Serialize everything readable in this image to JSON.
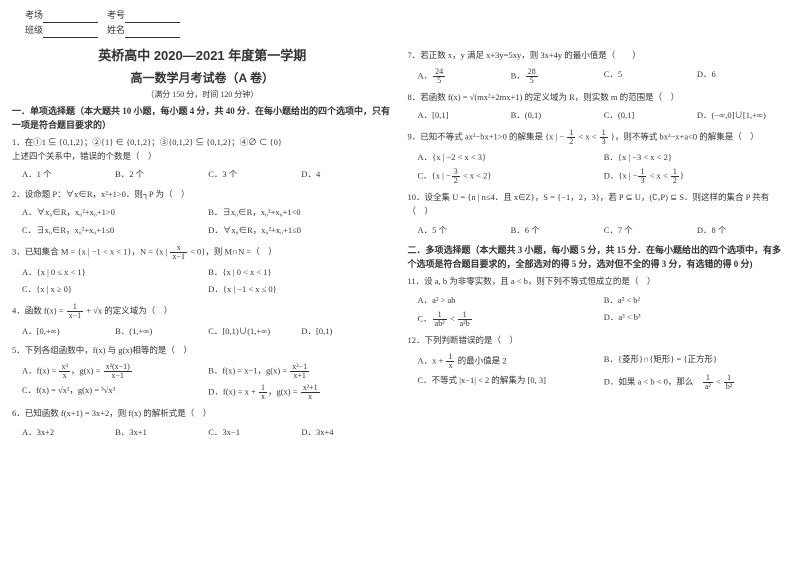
{
  "header": {
    "field1_label": "考场",
    "field2_label": "考号",
    "field3_label": "班级",
    "field4_label": "姓名"
  },
  "title1": "英桥高中 2020—2021 年度第一学期",
  "title2": "高一数学月考试卷（A 卷）",
  "subtitle": "（满分 150 分，时间 120 分钟）",
  "section1_head": "一．单项选择题（本大题共 10 小题，每小题 4 分，共 40 分．在每小题给出的四个选项中，只有一项是符合题目要求的）",
  "q1": {
    "text": "1．在①1 ⊆ {0,1,2}；②{1} ∈ {0,1,2}；③{0,1,2} ⊆ {0,1,2}；④∅ ⊂ {0}",
    "text2": "上述四个关系中，错误的个数是（　）",
    "A": "A．1 个",
    "B": "B．2 个",
    "C": "C．3 个",
    "D": "D．4"
  },
  "q2": {
    "text": "2．设命题 P：∀x∈R，x²+1>0．则┐P 为（　）",
    "A": "A．∀x₀∈R，x₀²+x₀+1>0",
    "B": "B．∃x₀∈R，x₀²+x₀+1<0",
    "C": "C．∃x₀∈R，x₀²+x₀+1≤0",
    "D": "D．∀x₀∈R，x₀²+x₀+1≤0"
  },
  "q3": {
    "text_pre": "3．已知集合 M = {x | −1 < x < 1}，N = {x | ",
    "text_post": " < 0}，则 M∩N =（　）",
    "frac_num": "x",
    "frac_den": "x−1",
    "A": "A．{x | 0 ≤ x < 1}",
    "B": "B．{x | 0 < x < 1}",
    "C": "C．{x | x ≥ 0}",
    "D": "D．{x | −1 < x ≤ 0}"
  },
  "q4": {
    "text_pre": "4．函数 f(x) = ",
    "frac_num": "1",
    "frac_den": "x−1",
    "text_post": " + √x 的定义域为（　）",
    "A": "A．[0,+∞)",
    "B": "B．(1,+∞)",
    "C": "C．[0,1)∪(1,+∞)",
    "D": "D．[0,1)"
  },
  "q5": {
    "text": "5．下列各组函数中，f(x) 与 g(x)相等的是（　）",
    "A_pre": "A．f(x) = ",
    "A_f1n": "x³",
    "A_f1d": "x",
    "A_mid": "，g(x) = ",
    "A_f2n": "x²(x−1)",
    "A_f2d": "x−1",
    "B_pre": "B．f(x) = x−1，g(x) = ",
    "B_fn": "x²−1",
    "B_fd": "x+1",
    "C": "C．f(x) = √x²，g(x) = ³√x³",
    "D_pre": "D．f(x) = x + ",
    "D_f1n": "1",
    "D_f1d": "x",
    "D_mid": "，g(x) = ",
    "D_f2n": "x²+1",
    "D_f2d": "x"
  },
  "q6": {
    "text": "6．已知函数 f(x+1) = 3x+2，则 f(x) 的解析式是（　）",
    "A": "A．3x+2",
    "B": "B．3x+1",
    "C": "C．3x−1",
    "D": "D．3x+4"
  },
  "q7": {
    "text": "7．若正数 x，y 满足 x+3y=5xy，则 3x+4y 的最小值是（　　）",
    "A_pre": "A．",
    "A_n": "24",
    "A_d": "5",
    "B_pre": "B．",
    "B_n": "28",
    "B_d": "5",
    "C": "C．5",
    "D": "D．6"
  },
  "q8": {
    "text": "8．若函数 f(x) = √(mx²+2mx+1) 的定义域为 R，则实数 m 的范围是（　）",
    "A": "A．[0,1]",
    "B": "B．(0,1)",
    "C": "C．(0,1]",
    "D": "D．(−∞,0]∪[1,+∞)"
  },
  "q9": {
    "text_pre": "9．已知不等式 ax²−bx+1>0 的解集是 {x | −",
    "f1n": "1",
    "f1d": "2",
    "text_mid": " < x < ",
    "f2n": "1",
    "f2d": "3",
    "text_post": "}，则不等式 bx²−x+a<0 的解集是（　）",
    "A": "A．{x | −2 < x < 3}",
    "B": "B．{x | −3 < x < 2}",
    "C_pre": "C．{x | −",
    "C_f1n": "3",
    "C_f1d": "2",
    "C_mid": " < x < 2}",
    "D_pre": "D．{x | −",
    "D_f1n": "1",
    "D_f1d": "3",
    "D_mid": " < x < ",
    "D_f2n": "1",
    "D_f2d": "2",
    "D_post": "}"
  },
  "q10": {
    "text": "10．设全集 U = {n | n≤4．且 x∈Z}，S = {−1，2，3}，若 P ⊆ U，(∁ᵤP) ⊆ S．则这样的集合 P 共有（　）",
    "A": "A．5 个",
    "B": "B．6 个",
    "C": "C．7 个",
    "D": "D．8 个"
  },
  "section2_head": "二．多项选择题（本大题共 3 小题，每小题 5 分，共 15 分．在每小题给出的四个选项中，有多个选项是符合题目要求的，全部选对的得 5 分，选对但不全的得 3 分，有选错的得 0 分)",
  "q11": {
    "text": "11．设 a, b 为非零实数，且 a < b，则下列不等式恒成立的是（　）",
    "A": "A．a² > ab",
    "B": "B．a² < b²",
    "C_pre": "C．",
    "C_f1n": "1",
    "C_f1d": "ab²",
    "C_mid": " < ",
    "C_f2n": "1",
    "C_f2d": "a²b",
    "D": "D．a³ < b³"
  },
  "q12": {
    "text": "12．下列判断错误的是（　）",
    "A_pre": "A．x + ",
    "A_fn": "1",
    "A_fd": "x",
    "A_post": " 的最小值是 2",
    "B": "B．{菱形}∩{矩形} = {正方形}",
    "C": "C．不等式 |x−1| < 2 的解集为 [0, 3]",
    "D_pre": "D．如果 a < b < 0，那么　",
    "D_f1n": "1",
    "D_f1d": "a²",
    "D_mid": " < ",
    "D_f2n": "1",
    "D_f2d": "b²"
  }
}
